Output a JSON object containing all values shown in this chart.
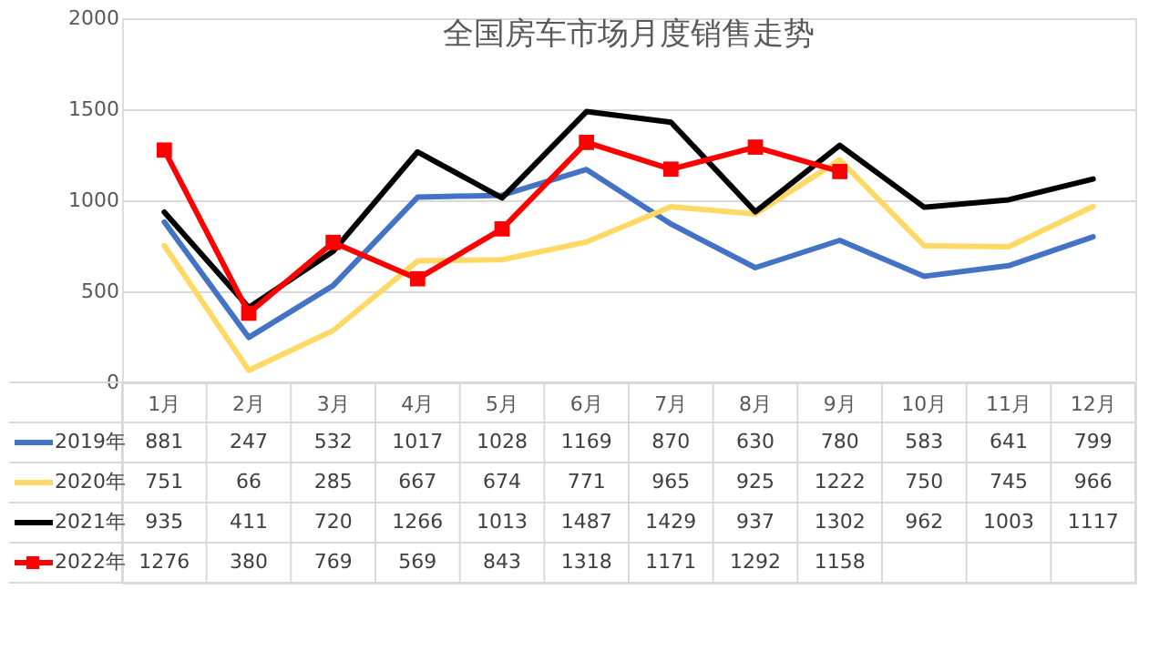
{
  "chart_data": {
    "type": "line",
    "title": "全国房车市场月度销售走势",
    "categories": [
      "1月",
      "2月",
      "3月",
      "4月",
      "5月",
      "6月",
      "7月",
      "8月",
      "9月",
      "10月",
      "11月",
      "12月"
    ],
    "series": [
      {
        "name": "2019年",
        "color": "#4472c4",
        "values": [
          881,
          247,
          532,
          1017,
          1028,
          1169,
          870,
          630,
          780,
          583,
          641,
          799
        ]
      },
      {
        "name": "2020年",
        "color": "#ffd966",
        "values": [
          751,
          66,
          285,
          667,
          674,
          771,
          965,
          925,
          1222,
          750,
          745,
          966
        ]
      },
      {
        "name": "2021年",
        "color": "#000000",
        "values": [
          935,
          411,
          720,
          1266,
          1013,
          1487,
          1429,
          937,
          1302,
          962,
          1003,
          1117
        ]
      },
      {
        "name": "2022年",
        "color": "#ff0000",
        "marker": "square",
        "values": [
          1276,
          380,
          769,
          569,
          843,
          1318,
          1171,
          1292,
          1158,
          null,
          null,
          null
        ]
      }
    ],
    "ylim": [
      0,
      2000
    ],
    "yticks": [
      0,
      500,
      1000,
      1500,
      2000
    ],
    "grid": "y",
    "legend": "bottom",
    "data_labels": true
  }
}
